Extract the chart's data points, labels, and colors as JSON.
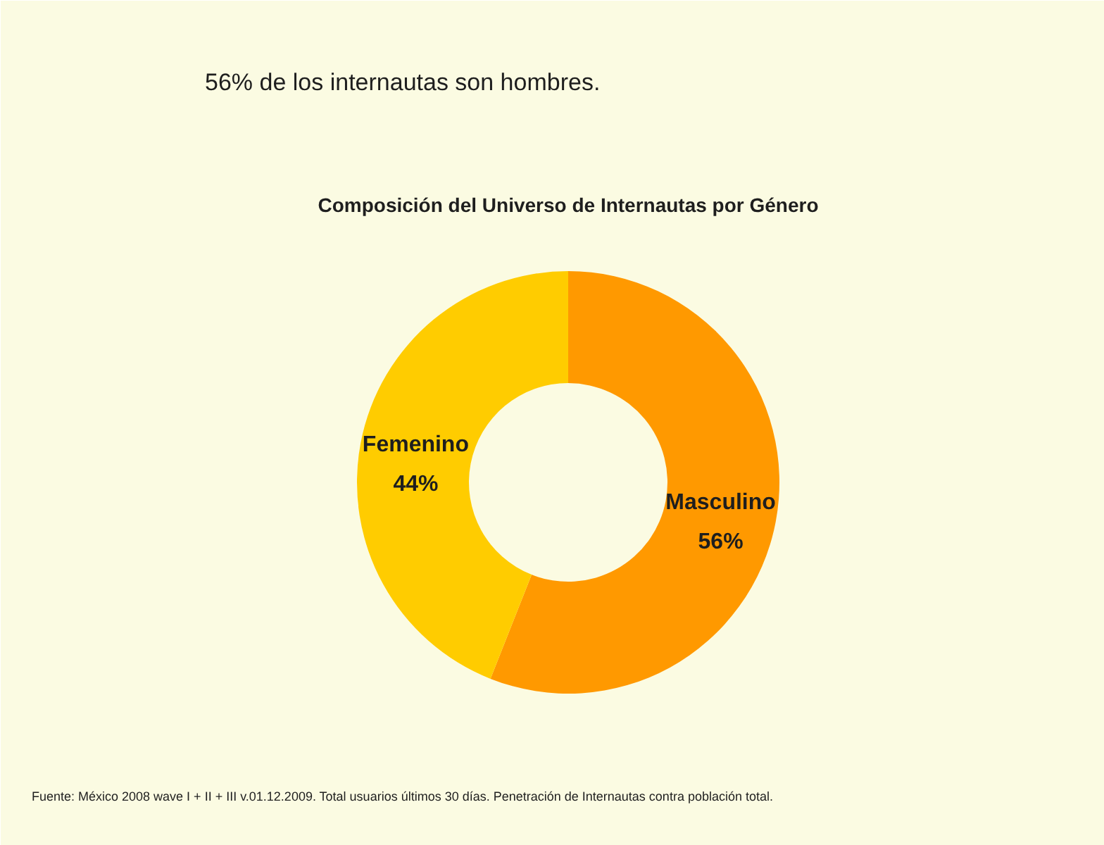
{
  "chart_data": {
    "type": "donut",
    "title": "Composición del Universo de Internautas por Género",
    "subtitle": "56% de los internautas son hombres.",
    "categories": [
      "Masculino",
      "Femenino"
    ],
    "values": [
      56,
      44
    ],
    "colors": [
      "#ff9900",
      "#ffcc00"
    ],
    "value_labels": [
      "56%",
      "44%"
    ],
    "annotations": [
      "Fuente: México 2008 wave I + II + III v.01.12.2009. Total usuarios últimos 30 días. Penetración de Internautas contra población total."
    ]
  }
}
